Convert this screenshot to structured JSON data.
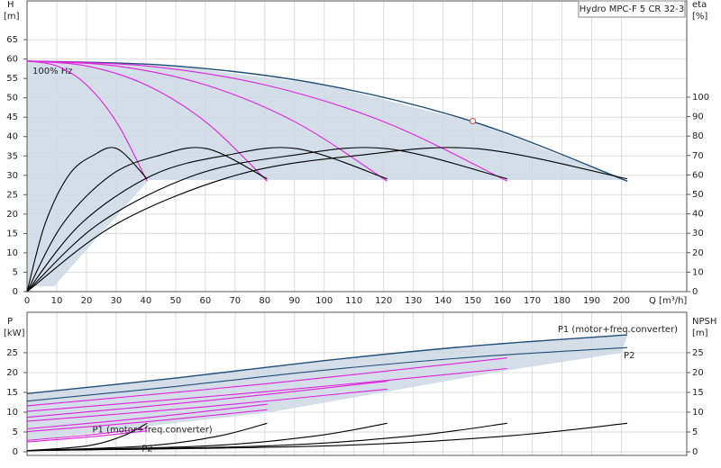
{
  "chart_data": [
    {
      "type": "line",
      "title": "Hydro MPC-F 5 CR 32-3",
      "ylabel": "H",
      "yunit": "[m]",
      "y2label": "eta",
      "y2unit": "[%]",
      "xlabel": "Q [m³/h]",
      "xlim": [
        0,
        222
      ],
      "xticks": [
        0,
        10,
        20,
        30,
        40,
        50,
        60,
        70,
        80,
        90,
        100,
        110,
        120,
        130,
        140,
        150,
        160,
        170,
        180,
        190,
        200
      ],
      "ylim": [
        0,
        75
      ],
      "yticks": [
        0,
        5,
        10,
        15,
        20,
        25,
        30,
        35,
        40,
        45,
        50,
        55,
        60,
        65
      ],
      "y2lim": [
        0,
        149.5
      ],
      "y2ticks": [
        0,
        10,
        20,
        30,
        40,
        50,
        60,
        70,
        80,
        90,
        100
      ],
      "grid": true,
      "duty_point": {
        "x": 150,
        "y": 44,
        "color": "#e04040"
      },
      "series": [
        {
          "name": "100% Hz",
          "color": "#1f4e79",
          "x": [
            0,
            50.5,
            101,
            151.5,
            202
          ],
          "values": [
            59.5,
            58.2,
            53.2,
            43.5,
            28.5
          ]
        },
        {
          "color": "#e020e0",
          "x": [
            0,
            10.1,
            20.2,
            30.3,
            40.4
          ],
          "values": [
            59.5,
            58.2,
            53.2,
            43.5,
            28.5
          ]
        },
        {
          "color": "#e020e0",
          "x": [
            0,
            20.2,
            40.4,
            60.6,
            80.8
          ],
          "values": [
            59.5,
            58.2,
            53.2,
            43.5,
            28.5
          ]
        },
        {
          "color": "#e020e0",
          "x": [
            0,
            30.3,
            60.6,
            90.9,
            121.2
          ],
          "values": [
            59.5,
            58.2,
            53.2,
            43.5,
            28.5
          ]
        },
        {
          "color": "#e020e0",
          "x": [
            0,
            40.4,
            80.8,
            121.2,
            161.6
          ],
          "values": [
            59.5,
            58.2,
            53.2,
            43.5,
            28.5
          ]
        },
        {
          "color": "#000000",
          "axis": "y2",
          "x": [
            0,
            6.1,
            14.1,
            22.2,
            30.3,
            40.4
          ],
          "values": [
            0,
            35,
            60,
            70,
            73.5,
            58
          ]
        },
        {
          "color": "#000000",
          "axis": "y2",
          "x": [
            0,
            12.1,
            28.3,
            44.4,
            60.6,
            80.8
          ],
          "values": [
            0,
            35,
            60,
            70,
            73.5,
            58
          ]
        },
        {
          "color": "#000000",
          "axis": "y2",
          "x": [
            0,
            18.2,
            42.4,
            66.7,
            90.9,
            121.2
          ],
          "values": [
            0,
            35,
            60,
            70,
            73.5,
            58
          ]
        },
        {
          "color": "#000000",
          "axis": "y2",
          "x": [
            0,
            24.2,
            56.6,
            88.9,
            121.2,
            161.6
          ],
          "values": [
            0,
            35,
            60,
            70,
            73.5,
            58
          ]
        },
        {
          "color": "#000000",
          "axis": "y2",
          "x": [
            0,
            30.3,
            70.7,
            111.1,
            151.5,
            202
          ],
          "values": [
            0,
            35,
            60,
            70,
            73.5,
            58
          ]
        }
      ]
    },
    {
      "type": "line",
      "ylabel": "P",
      "yunit": "[kW]",
      "y2label": "NPSH",
      "y2unit": "[m]",
      "xlim": [
        0,
        222
      ],
      "xticks": [
        0,
        10,
        20,
        30,
        40,
        50,
        60,
        70,
        80,
        90,
        100,
        110,
        120,
        130,
        140,
        150,
        160,
        170,
        180,
        190,
        200
      ],
      "ylim": [
        -0.9,
        35.2
      ],
      "yticks": [
        0,
        5,
        10,
        15,
        20,
        25
      ],
      "y2lim": [
        -0.9,
        35.2
      ],
      "y2ticks": [
        0,
        5,
        10,
        15,
        20,
        25
      ],
      "grid": true,
      "series": [
        {
          "name": "P1 (motor+freq.converter)",
          "color": "#1f4e79",
          "x": [
            0,
            50,
            100,
            150,
            202
          ],
          "values": [
            14.7,
            18.6,
            23,
            26.7,
            29.5
          ]
        },
        {
          "name": "P2",
          "color": "#1f4e79",
          "x": [
            0,
            50,
            100,
            150,
            202
          ],
          "values": [
            12.8,
            16.5,
            20.6,
            23.9,
            26.3
          ]
        },
        {
          "name": "P1 (motor+freq.converter)",
          "color": "#e020e0",
          "x": [
            0,
            20.2,
            40.4
          ],
          "values": [
            2.9,
            4.2,
            6.0
          ]
        },
        {
          "name": "P2",
          "color": "#e020e0",
          "x": [
            0,
            20.2,
            40.4
          ],
          "values": [
            2.5,
            3.7,
            5.3
          ]
        },
        {
          "color": "#e020e0",
          "x": [
            0,
            40.4,
            80.8
          ],
          "values": [
            5.8,
            8.6,
            12
          ]
        },
        {
          "color": "#e020e0",
          "x": [
            0,
            40.4,
            80.8
          ],
          "values": [
            5.1,
            7.6,
            10.6
          ]
        },
        {
          "color": "#e020e0",
          "x": [
            0,
            60.6,
            121.2
          ],
          "values": [
            8.7,
            12.9,
            17.8
          ]
        },
        {
          "color": "#e020e0",
          "x": [
            0,
            60.6,
            121.2
          ],
          "values": [
            7.7,
            11.4,
            15.8
          ]
        },
        {
          "color": "#e020e0",
          "x": [
            0,
            80.8,
            161.6
          ],
          "values": [
            11.6,
            17.2,
            23.7
          ]
        },
        {
          "color": "#e020e0",
          "x": [
            0,
            80.8,
            161.6
          ],
          "values": [
            10.2,
            15.2,
            21.0
          ]
        },
        {
          "color": "#000000",
          "axis": "y2",
          "x": [
            0,
            20.2,
            32.3,
            40.4
          ],
          "values": [
            0.3,
            1.5,
            4,
            7.2
          ]
        },
        {
          "color": "#000000",
          "axis": "y2",
          "x": [
            0,
            40.4,
            64.6,
            80.8
          ],
          "values": [
            0.3,
            1.5,
            4,
            7.2
          ]
        },
        {
          "color": "#000000",
          "axis": "y2",
          "x": [
            0,
            60.6,
            97,
            121.2
          ],
          "values": [
            0.3,
            1.5,
            4,
            7.2
          ]
        },
        {
          "color": "#000000",
          "axis": "y2",
          "x": [
            0,
            80.8,
            129.3,
            161.6
          ],
          "values": [
            0.3,
            1.5,
            4,
            7.2
          ]
        },
        {
          "color": "#000000",
          "axis": "y2",
          "x": [
            0,
            101,
            161.6,
            202
          ],
          "values": [
            0.3,
            1.5,
            4,
            7.2
          ]
        }
      ]
    }
  ]
}
